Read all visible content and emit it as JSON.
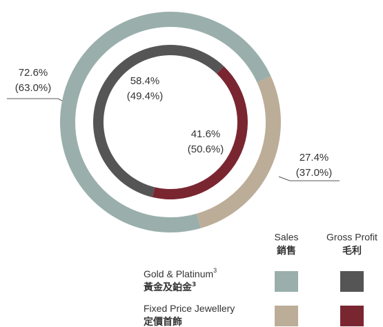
{
  "chart_data": {
    "type": "donut",
    "categories": [
      "Gold & Platinum",
      "Fixed Price Jewellery"
    ],
    "categories_zh": [
      "黃金及鉑金",
      "定價首飾"
    ],
    "footnote_marks": [
      "3",
      null
    ],
    "series": [
      {
        "name": "Sales",
        "name_zh": "銷售",
        "colors": [
          "#9aafab",
          "#bcad98"
        ],
        "values": [
          72.6,
          27.4
        ],
        "value_labels": [
          "72.6%",
          "27.4%"
        ],
        "prior_values": [
          63.0,
          37.0
        ],
        "prior_value_labels": [
          "(63.0%)",
          "(37.0%)"
        ]
      },
      {
        "name": "Gross Profit",
        "name_zh": "毛利",
        "colors": [
          "#555555",
          "#7a2631"
        ],
        "values": [
          58.4,
          41.6
        ],
        "value_labels": [
          "58.4%",
          "41.6%"
        ],
        "prior_values": [
          49.4,
          50.6
        ],
        "prior_value_labels": [
          "(49.4%)",
          "(50.6%)"
        ]
      }
    ]
  }
}
